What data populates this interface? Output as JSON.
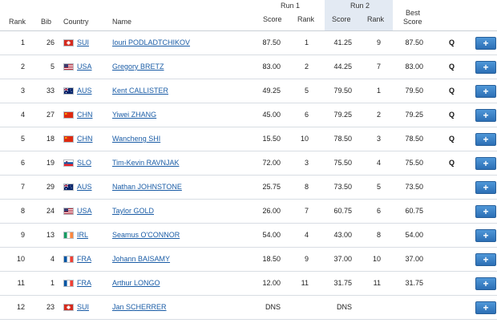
{
  "header": {
    "rank": "Rank",
    "bib": "Bib",
    "country": "Country",
    "name": "Name",
    "run1": "Run 1",
    "run2": "Run 2",
    "best_line1": "Best",
    "best_line2": "Score",
    "score": "Score",
    "rank_col": "Rank"
  },
  "rows": [
    {
      "rank": "1",
      "bib": "26",
      "flag": "sui",
      "country": "SUI",
      "name": "Iouri PODLADTCHIKOV",
      "r1_score": "87.50",
      "r1_rank": "1",
      "r2_score": "41.25",
      "r2_rank": "9",
      "best": "87.50",
      "q": "Q"
    },
    {
      "rank": "2",
      "bib": "5",
      "flag": "usa",
      "country": "USA",
      "name": "Gregory BRETZ",
      "r1_score": "83.00",
      "r1_rank": "2",
      "r2_score": "44.25",
      "r2_rank": "7",
      "best": "83.00",
      "q": "Q"
    },
    {
      "rank": "3",
      "bib": "33",
      "flag": "aus",
      "country": "AUS",
      "name": "Kent CALLISTER",
      "r1_score": "49.25",
      "r1_rank": "5",
      "r2_score": "79.50",
      "r2_rank": "1",
      "best": "79.50",
      "q": "Q"
    },
    {
      "rank": "4",
      "bib": "27",
      "flag": "chn",
      "country": "CHN",
      "name": "Yiwei ZHANG",
      "r1_score": "45.00",
      "r1_rank": "6",
      "r2_score": "79.25",
      "r2_rank": "2",
      "best": "79.25",
      "q": "Q"
    },
    {
      "rank": "5",
      "bib": "18",
      "flag": "chn",
      "country": "CHN",
      "name": "Wancheng SHI",
      "r1_score": "15.50",
      "r1_rank": "10",
      "r2_score": "78.50",
      "r2_rank": "3",
      "best": "78.50",
      "q": "Q"
    },
    {
      "rank": "6",
      "bib": "19",
      "flag": "slo",
      "country": "SLO",
      "name": "Tim-Kevin RAVNJAK",
      "r1_score": "72.00",
      "r1_rank": "3",
      "r2_score": "75.50",
      "r2_rank": "4",
      "best": "75.50",
      "q": "Q"
    },
    {
      "rank": "7",
      "bib": "29",
      "flag": "aus",
      "country": "AUS",
      "name": "Nathan JOHNSTONE",
      "r1_score": "25.75",
      "r1_rank": "8",
      "r2_score": "73.50",
      "r2_rank": "5",
      "best": "73.50",
      "q": ""
    },
    {
      "rank": "8",
      "bib": "24",
      "flag": "usa",
      "country": "USA",
      "name": "Taylor GOLD",
      "r1_score": "26.00",
      "r1_rank": "7",
      "r2_score": "60.75",
      "r2_rank": "6",
      "best": "60.75",
      "q": ""
    },
    {
      "rank": "9",
      "bib": "13",
      "flag": "irl",
      "country": "IRL",
      "name": "Seamus O'CONNOR",
      "r1_score": "54.00",
      "r1_rank": "4",
      "r2_score": "43.00",
      "r2_rank": "8",
      "best": "54.00",
      "q": ""
    },
    {
      "rank": "10",
      "bib": "4",
      "flag": "fra",
      "country": "FRA",
      "name": "Johann BAISAMY",
      "r1_score": "18.50",
      "r1_rank": "9",
      "r2_score": "37.00",
      "r2_rank": "10",
      "best": "37.00",
      "q": ""
    },
    {
      "rank": "11",
      "bib": "1",
      "flag": "fra",
      "country": "FRA",
      "name": "Arthur LONGO",
      "r1_score": "12.00",
      "r1_rank": "11",
      "r2_score": "31.75",
      "r2_rank": "11",
      "best": "31.75",
      "q": ""
    },
    {
      "rank": "12",
      "bib": "23",
      "flag": "sui",
      "country": "SUI",
      "name": "Jan SCHERRER",
      "r1_score": "DNS",
      "r1_rank": "",
      "r2_score": "DNS",
      "r2_rank": "",
      "best": "",
      "q": ""
    }
  ],
  "expand_label": "+",
  "colors": {
    "link": "#1a5ca6",
    "run2_band": "#e3eaf3",
    "button": "#3a80c4"
  }
}
